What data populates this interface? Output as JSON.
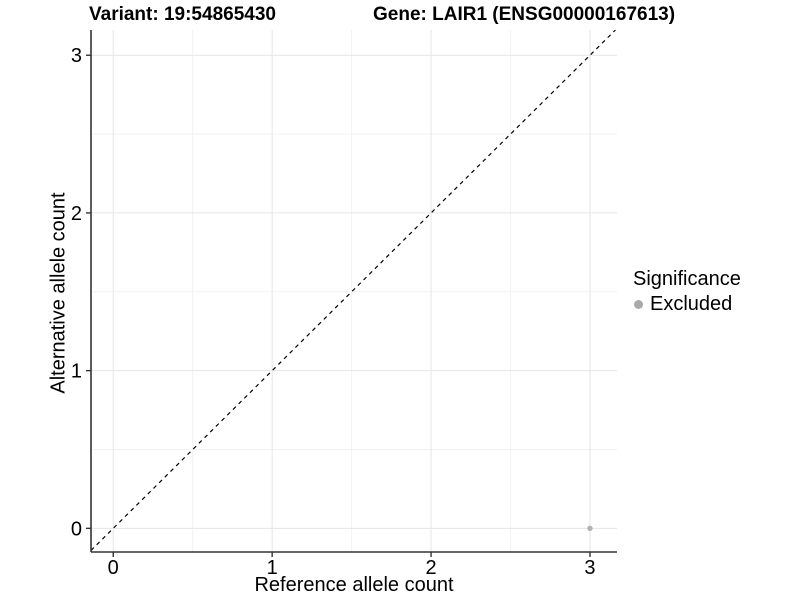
{
  "chart_data": {
    "type": "scatter",
    "title_left": "Variant: 19:54865430",
    "title_right": "Gene: LAIR1 (ENSG00000167613)",
    "xlabel": "Reference allele count",
    "ylabel": "Alternative allele count",
    "xlim": [
      -0.14,
      3.17
    ],
    "ylim": [
      -0.15,
      3.16
    ],
    "x_ticks": [
      0,
      1,
      2,
      3
    ],
    "y_ticks": [
      0,
      1,
      2,
      3
    ],
    "x_minor_ticks": [
      0.5,
      1.5,
      2.5
    ],
    "y_minor_ticks": [
      0.5,
      1.5,
      2.5
    ],
    "grid": "major+minor",
    "reference_line": {
      "type": "identity",
      "equation": "y = x",
      "style": "dashed"
    },
    "series": [
      {
        "name": "Excluded",
        "color": "#b2b2b2",
        "points": [
          {
            "x": 3,
            "y": 0
          }
        ]
      }
    ],
    "legend": {
      "title": "Significance",
      "position": "right",
      "entries": [
        {
          "label": "Excluded",
          "color": "#aaaaaa",
          "marker": "dot"
        }
      ]
    }
  },
  "colors": {
    "background": "#ffffff",
    "axis_line": "#333333",
    "grid_major": "#e6e6e6",
    "grid_minor": "#f2f2f2",
    "dashed_line": "#000000",
    "text": "#000000"
  }
}
